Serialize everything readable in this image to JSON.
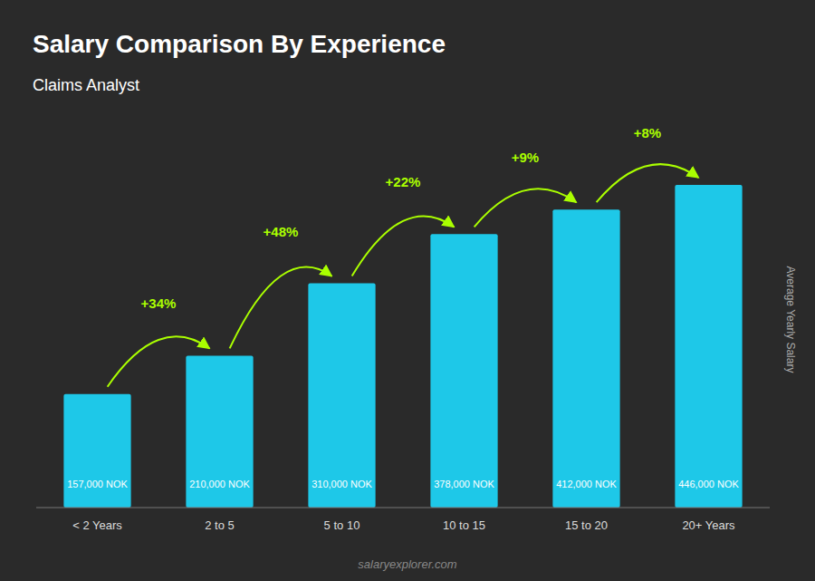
{
  "chart_data": {
    "type": "bar",
    "title": "Salary Comparison By Experience",
    "subtitle": "Claims Analyst",
    "ylabel": "Average Yearly Salary",
    "watermark": "salaryexplorer.com",
    "categories": [
      "< 2 Years",
      "2 to 5",
      "5 to 10",
      "10 to 15",
      "15 to 20",
      "20+ Years"
    ],
    "values": [
      157000,
      210000,
      310000,
      378000,
      412000,
      446000
    ],
    "value_labels": [
      "157,000 NOK",
      "210,000 NOK",
      "310,000 NOK",
      "378,000 NOK",
      "412,000 NOK",
      "446,000 NOK"
    ],
    "data_labels": true,
    "annotations": [
      "+34%",
      "+48%",
      "+22%",
      "+9%",
      "+8%"
    ],
    "color": "#1ec8e8",
    "ylim": [
      0,
      520000
    ],
    "tick_labels": "x",
    "grid": false
  }
}
